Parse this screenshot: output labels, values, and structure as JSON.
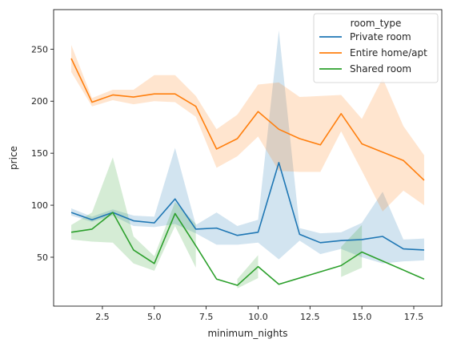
{
  "chart_data": {
    "type": "line",
    "title": "",
    "xlabel": "minimum_nights",
    "ylabel": "price",
    "xlim": [
      0.15,
      18.85
    ],
    "ylim": [
      3,
      288
    ],
    "x_ticks": [
      2.5,
      5.0,
      7.5,
      10.0,
      12.5,
      15.0,
      17.5
    ],
    "x_tick_labels": [
      "2.5",
      "5.0",
      "7.5",
      "10.0",
      "12.5",
      "15.0",
      "17.5"
    ],
    "y_ticks": [
      50,
      100,
      150,
      200,
      250
    ],
    "y_tick_labels": [
      "50",
      "100",
      "150",
      "200",
      "250"
    ],
    "grid": false,
    "legend": {
      "title": "room_type",
      "placement": "top-right"
    },
    "series": [
      {
        "name": "Private room",
        "color": "#1f77b4",
        "x": [
          1,
          2,
          3,
          4,
          5,
          6,
          7,
          8,
          9,
          10,
          11,
          12,
          13,
          14,
          15,
          16,
          17,
          18
        ],
        "values": [
          93,
          86,
          93,
          85,
          83,
          106,
          77,
          78,
          71,
          74,
          141,
          72,
          64,
          66,
          67,
          70,
          58,
          57
        ],
        "lower": [
          90,
          84,
          90,
          80,
          79,
          82,
          73,
          62,
          62,
          64,
          48,
          66,
          53,
          58,
          50,
          44,
          46,
          47
        ],
        "upper": [
          97,
          89,
          96,
          90,
          89,
          155,
          81,
          93,
          80,
          86,
          268,
          78,
          73,
          74,
          83,
          113,
          67,
          68
        ]
      },
      {
        "name": "Entire home/apt",
        "color": "#ff7f0e",
        "x": [
          1,
          2,
          3,
          4,
          5,
          6,
          7,
          8,
          9,
          10,
          11,
          12,
          13,
          14,
          15,
          16,
          17,
          18
        ],
        "values": [
          241,
          199,
          206,
          204,
          207,
          207,
          195,
          154,
          164,
          190,
          173,
          164,
          158,
          188,
          159,
          151,
          143,
          124
        ],
        "lower": [
          228,
          195,
          201,
          197,
          200,
          199,
          185,
          136,
          147,
          166,
          133,
          132,
          132,
          171,
          133,
          94,
          114,
          100
        ],
        "upper": [
          254,
          203,
          211,
          211,
          225,
          225,
          205,
          173,
          187,
          216,
          218,
          204,
          205,
          206,
          183,
          222,
          176,
          148
        ]
      },
      {
        "name": "Shared room",
        "color": "#2ca02c",
        "x": [
          1,
          2,
          3,
          4,
          5,
          6,
          7,
          8,
          9,
          10,
          11,
          12,
          13,
          14,
          15,
          16,
          17,
          18
        ],
        "values": [
          74,
          77,
          93,
          57,
          44,
          92,
          61,
          29,
          23,
          41,
          24,
          null,
          null,
          42,
          55,
          null,
          null,
          29
        ],
        "lower": [
          67,
          65,
          64,
          44,
          37,
          80,
          40,
          null,
          20,
          30,
          null,
          null,
          null,
          31,
          40,
          null,
          null,
          null
        ],
        "upper": [
          81,
          93,
          146,
          70,
          51,
          103,
          82,
          null,
          29,
          52,
          null,
          null,
          null,
          60,
          81,
          null,
          null,
          null
        ]
      }
    ]
  }
}
